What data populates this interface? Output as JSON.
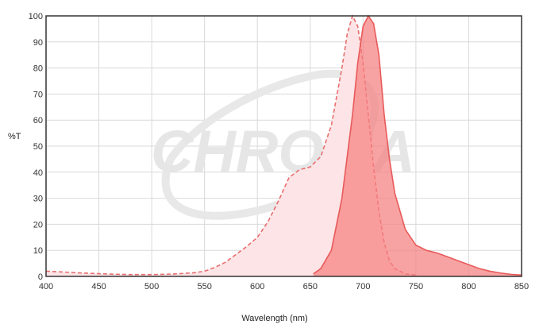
{
  "chart_data": {
    "type": "area",
    "xlabel": "Wavelength (nm)",
    "ylabel": "%T",
    "xlim": [
      400,
      850
    ],
    "ylim": [
      0,
      100
    ],
    "x_ticks": [
      400,
      450,
      500,
      550,
      600,
      650,
      700,
      750,
      800,
      850
    ],
    "y_ticks": [
      0,
      10,
      20,
      30,
      40,
      50,
      60,
      70,
      80,
      90,
      100
    ],
    "grid": true,
    "watermark": "CHROMA",
    "series": [
      {
        "style": "dashed-area",
        "color": "#e86e6e",
        "fill": "#fde4e6",
        "points": [
          [
            400,
            2.0
          ],
          [
            420,
            1.6
          ],
          [
            440,
            1.2
          ],
          [
            460,
            0.9
          ],
          [
            480,
            0.7
          ],
          [
            500,
            0.7
          ],
          [
            520,
            0.9
          ],
          [
            540,
            1.4
          ],
          [
            550,
            2.0
          ],
          [
            560,
            3.5
          ],
          [
            570,
            5.5
          ],
          [
            580,
            8.5
          ],
          [
            590,
            11.5
          ],
          [
            600,
            15.0
          ],
          [
            610,
            21.0
          ],
          [
            620,
            29.0
          ],
          [
            630,
            38.0
          ],
          [
            640,
            41.0
          ],
          [
            650,
            42.0
          ],
          [
            660,
            46.0
          ],
          [
            670,
            58.0
          ],
          [
            680,
            80.0
          ],
          [
            685,
            93.0
          ],
          [
            690,
            100.0
          ],
          [
            695,
            96.0
          ],
          [
            700,
            82.0
          ],
          [
            705,
            62.0
          ],
          [
            710,
            42.0
          ],
          [
            715,
            25.0
          ],
          [
            720,
            13.0
          ],
          [
            725,
            6.0
          ],
          [
            730,
            3.0
          ],
          [
            740,
            1.0
          ],
          [
            750,
            0.5
          ]
        ]
      },
      {
        "style": "solid-area",
        "color": "#e85a5a",
        "fill": "#f57f7f",
        "points": [
          [
            653,
            1.0
          ],
          [
            660,
            3.0
          ],
          [
            670,
            10.0
          ],
          [
            680,
            30.0
          ],
          [
            690,
            62.0
          ],
          [
            695,
            82.0
          ],
          [
            700,
            96.0
          ],
          [
            705,
            100.0
          ],
          [
            710,
            97.0
          ],
          [
            715,
            85.0
          ],
          [
            720,
            62.0
          ],
          [
            725,
            45.0
          ],
          [
            730,
            32.0
          ],
          [
            740,
            18.0
          ],
          [
            750,
            12.0
          ],
          [
            760,
            10.0
          ],
          [
            770,
            9.0
          ],
          [
            780,
            7.5
          ],
          [
            790,
            6.0
          ],
          [
            800,
            4.5
          ],
          [
            810,
            3.0
          ],
          [
            820,
            2.0
          ],
          [
            830,
            1.3
          ],
          [
            840,
            0.8
          ],
          [
            850,
            0.5
          ]
        ]
      }
    ]
  }
}
